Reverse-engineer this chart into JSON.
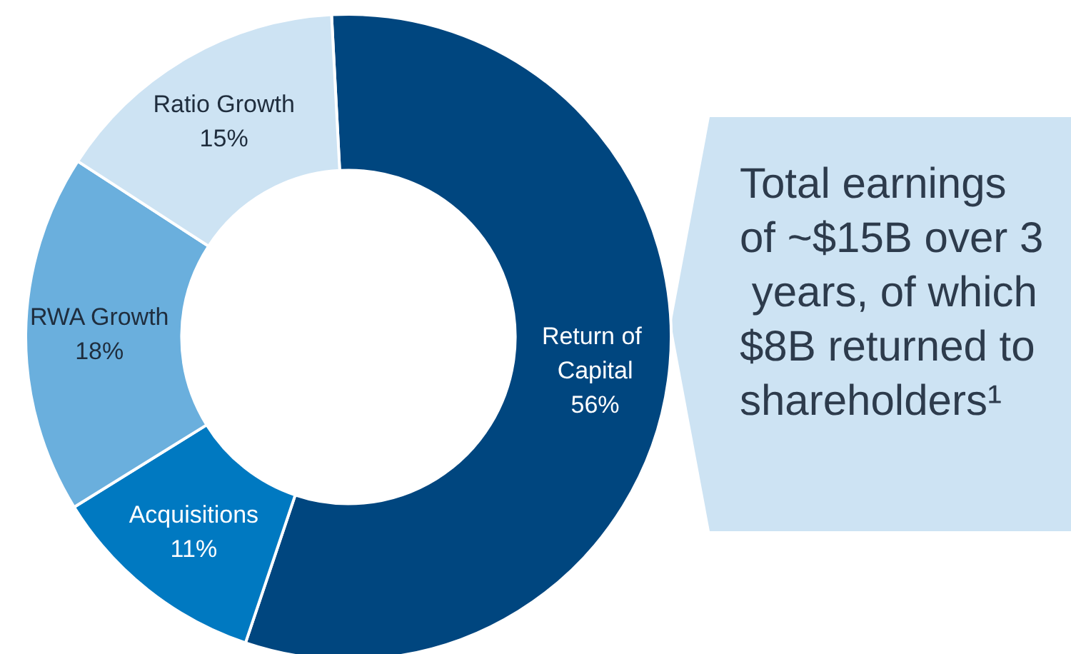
{
  "chart_data": {
    "type": "donut",
    "categories": [
      "Return of Capital",
      "Acquisitions",
      "RWA Growth",
      "Ratio Growth"
    ],
    "values": [
      56,
      11,
      18,
      15
    ],
    "value_labels": [
      "56%",
      "11%",
      "18%",
      "15%"
    ],
    "colors": [
      "#00467f",
      "#0079c1",
      "#6aafdd",
      "#cde3f3"
    ],
    "annotations": [
      "Total earnings of ~$15B over 3 years, of which $8B returned to shareholders¹"
    ],
    "legend": false
  }
}
